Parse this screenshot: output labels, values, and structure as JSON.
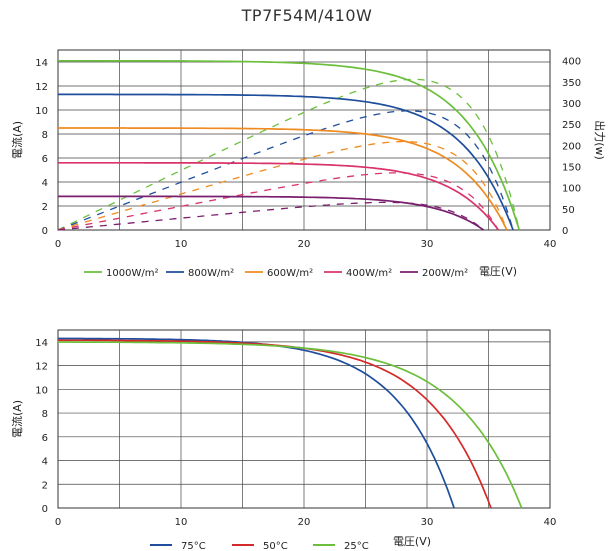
{
  "title": "TP7F54M/410W",
  "chart_data": [
    {
      "type": "line",
      "xlabel": "電圧(V)",
      "ylabel": "電流(A)",
      "y2label": "出力(w)",
      "xlim": [
        0,
        40
      ],
      "ylim": [
        0,
        15
      ],
      "y2lim": [
        0,
        425
      ],
      "xticks": [
        "0",
        "10",
        "20",
        "30",
        "40"
      ],
      "yticks": [
        "0",
        "2",
        "4",
        "6",
        "8",
        "10",
        "12",
        "14"
      ],
      "y2ticks": [
        "0",
        "50",
        "100",
        "150",
        "200",
        "250",
        "300",
        "350",
        "400"
      ],
      "grid": true,
      "legend_position": "bottom",
      "series": [
        {
          "name": "1000W/m²",
          "color": "#6cbf3c",
          "isc": 14.1,
          "voc": 37.5
        },
        {
          "name": "800W/m²",
          "color": "#1f4e9c",
          "isc": 11.3,
          "voc": 37.0
        },
        {
          "name": "600W/m²",
          "color": "#ef8b22",
          "isc": 8.5,
          "voc": 36.5
        },
        {
          "name": "400W/m²",
          "color": "#d9346a",
          "isc": 5.6,
          "voc": 35.8
        },
        {
          "name": "200W/m²",
          "color": "#7a1f6e",
          "isc": 2.8,
          "voc": 34.6
        }
      ]
    },
    {
      "type": "line",
      "xlabel": "電圧(V)",
      "ylabel": "電流(A)",
      "xlim": [
        0,
        40
      ],
      "ylim": [
        0,
        15
      ],
      "xticks": [
        "0",
        "10",
        "20",
        "30",
        "40"
      ],
      "yticks": [
        "0",
        "2",
        "4",
        "6",
        "8",
        "10",
        "12",
        "14"
      ],
      "grid": true,
      "legend_position": "bottom",
      "series": [
        {
          "name": "75°C",
          "color": "#1f4e9c",
          "isc": 14.3,
          "voc": 32.2
        },
        {
          "name": "50°C",
          "color": "#d42a2a",
          "isc": 14.15,
          "voc": 35.2
        },
        {
          "name": "25°C",
          "color": "#6cbf3c",
          "isc": 14.0,
          "voc": 37.7
        }
      ]
    }
  ]
}
